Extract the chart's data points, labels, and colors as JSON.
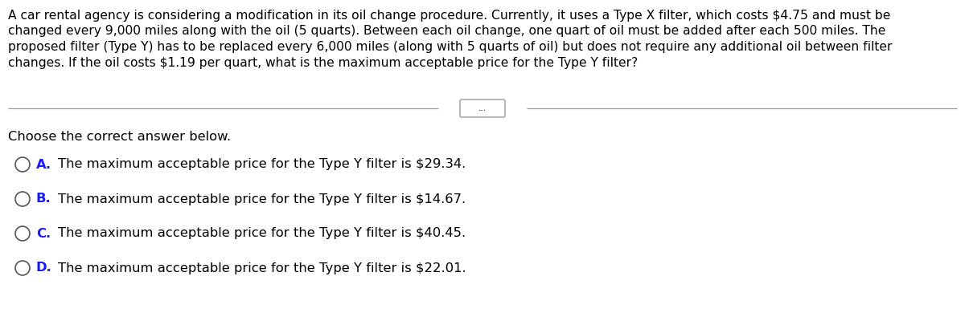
{
  "background_color": "#ffffff",
  "paragraph_lines": [
    "A car rental agency is considering a modification in its oil change procedure. Currently, it uses a Type X filter, which costs $4.75 and must be",
    "changed every 9,000 miles along with the oil (5 quarts). Between each oil change, one quart of oil must be added after each 500 miles. The",
    "proposed filter (Type Y) has to be replaced every 6,000 miles (along with 5 quarts of oil) but does not require any additional oil between filter",
    "changes. If the oil costs $1.19 per quart, what is the maximum acceptable price for the Type Y filter?"
  ],
  "choose_text": "Choose the correct answer below.",
  "options": [
    {
      "letter": "A.",
      "text": "  The maximum acceptable price for the Type Y filter is $29.34."
    },
    {
      "letter": "B.",
      "text": "  The maximum acceptable price for the Type Y filter is $14.67."
    },
    {
      "letter": "C.",
      "text": "  The maximum acceptable price for the Type Y filter is $40.45."
    },
    {
      "letter": "D.",
      "text": "  The maximum acceptable price for the Type Y filter is $22.01."
    }
  ],
  "divider_dots_text": "...",
  "text_color": "#000000",
  "letter_color": "#1a1aff",
  "divider_color": "#999999",
  "circle_color": "#555555",
  "font_size_paragraph": 11.2,
  "font_size_options": 11.8,
  "font_size_choose": 11.8,
  "font_size_dots": 7.5,
  "fig_width": 12.0,
  "fig_height": 4.05,
  "dpi": 100
}
